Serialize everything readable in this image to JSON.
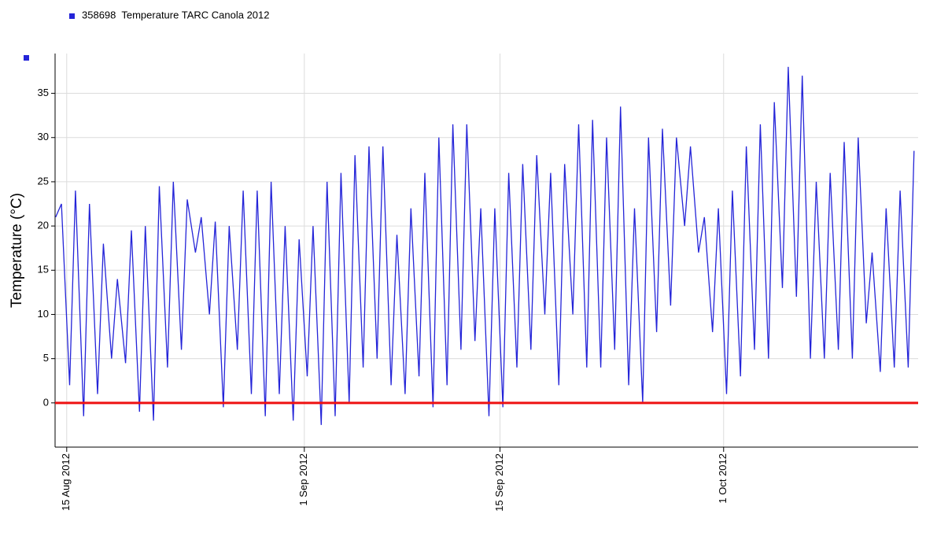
{
  "chart_data": {
    "type": "line",
    "ylabel": "Temperature (°C)",
    "series": [
      {
        "name": "358698  Temperature TARC Canola 2012",
        "color": "#2424d8",
        "x": [
          "2012-08-14T05:00",
          "2012-08-14T15:00",
          "2012-08-15T05:00",
          "2012-08-15T15:00",
          "2012-08-16T05:00",
          "2012-08-16T15:00",
          "2012-08-17T05:00",
          "2012-08-17T15:00",
          "2012-08-18T05:00",
          "2012-08-18T15:00",
          "2012-08-19T05:00",
          "2012-08-19T15:00",
          "2012-08-20T05:00",
          "2012-08-20T15:00",
          "2012-08-21T05:00",
          "2012-08-21T15:00",
          "2012-08-22T05:00",
          "2012-08-22T15:00",
          "2012-08-23T05:00",
          "2012-08-23T15:00",
          "2012-08-24T05:00",
          "2012-08-24T15:00",
          "2012-08-25T05:00",
          "2012-08-25T15:00",
          "2012-08-26T05:00",
          "2012-08-26T15:00",
          "2012-08-27T05:00",
          "2012-08-27T15:00",
          "2012-08-28T05:00",
          "2012-08-28T15:00",
          "2012-08-29T05:00",
          "2012-08-29T15:00",
          "2012-08-30T05:00",
          "2012-08-30T15:00",
          "2012-08-31T05:00",
          "2012-08-31T15:00",
          "2012-09-01T05:00",
          "2012-09-01T15:00",
          "2012-09-02T05:00",
          "2012-09-02T15:00",
          "2012-09-03T05:00",
          "2012-09-03T15:00",
          "2012-09-04T05:00",
          "2012-09-04T15:00",
          "2012-09-05T05:00",
          "2012-09-05T15:00",
          "2012-09-06T05:00",
          "2012-09-06T15:00",
          "2012-09-07T05:00",
          "2012-09-07T15:00",
          "2012-09-08T05:00",
          "2012-09-08T15:00",
          "2012-09-09T05:00",
          "2012-09-09T15:00",
          "2012-09-10T05:00",
          "2012-09-10T15:00",
          "2012-09-11T05:00",
          "2012-09-11T15:00",
          "2012-09-12T05:00",
          "2012-09-12T15:00",
          "2012-09-13T05:00",
          "2012-09-13T15:00",
          "2012-09-14T05:00",
          "2012-09-14T15:00",
          "2012-09-15T05:00",
          "2012-09-15T15:00",
          "2012-09-16T05:00",
          "2012-09-16T15:00",
          "2012-09-17T05:00",
          "2012-09-17T15:00",
          "2012-09-18T05:00",
          "2012-09-18T15:00",
          "2012-09-19T05:00",
          "2012-09-19T15:00",
          "2012-09-20T05:00",
          "2012-09-20T15:00",
          "2012-09-21T05:00",
          "2012-09-21T15:00",
          "2012-09-22T05:00",
          "2012-09-22T15:00",
          "2012-09-23T05:00",
          "2012-09-23T15:00",
          "2012-09-24T05:00",
          "2012-09-24T15:00",
          "2012-09-25T05:00",
          "2012-09-25T15:00",
          "2012-09-26T05:00",
          "2012-09-26T15:00",
          "2012-09-27T05:00",
          "2012-09-27T15:00",
          "2012-09-28T05:00",
          "2012-09-28T15:00",
          "2012-09-29T05:00",
          "2012-09-29T15:00",
          "2012-09-30T05:00",
          "2012-09-30T15:00",
          "2012-10-01T05:00",
          "2012-10-01T15:00",
          "2012-10-02T05:00",
          "2012-10-02T15:00",
          "2012-10-03T05:00",
          "2012-10-03T15:00",
          "2012-10-04T05:00",
          "2012-10-04T15:00",
          "2012-10-05T05:00",
          "2012-10-05T15:00",
          "2012-10-06T05:00",
          "2012-10-06T15:00",
          "2012-10-07T05:00",
          "2012-10-07T15:00",
          "2012-10-08T05:00",
          "2012-10-08T15:00",
          "2012-10-09T05:00",
          "2012-10-09T15:00",
          "2012-10-10T05:00",
          "2012-10-10T15:00",
          "2012-10-11T05:00",
          "2012-10-11T15:00",
          "2012-10-12T05:00",
          "2012-10-12T15:00",
          "2012-10-13T05:00",
          "2012-10-13T15:00",
          "2012-10-14T05:00",
          "2012-10-14T15:00"
        ],
        "values": [
          21,
          22.5,
          2,
          24,
          -1.5,
          22.5,
          1,
          18,
          5,
          14,
          4.5,
          19.5,
          -1,
          20,
          -2,
          24.5,
          4,
          25,
          6,
          23,
          17,
          21,
          10,
          20.5,
          -0.5,
          20,
          6,
          24,
          1,
          24,
          -1.5,
          25,
          1,
          20,
          -2,
          18.5,
          3,
          20,
          -2.5,
          25,
          -1.5,
          26,
          0,
          28,
          4,
          29,
          5,
          29,
          2,
          19,
          1,
          22,
          3,
          26,
          -0.5,
          30,
          2,
          31.5,
          6,
          31.5,
          7,
          22,
          -1.5,
          22,
          -0.5,
          26,
          4,
          27,
          6,
          28,
          10,
          26,
          2,
          27,
          10,
          31.5,
          4,
          32,
          4,
          30,
          6,
          33.5,
          2,
          22,
          0,
          30,
          8,
          31,
          11,
          30,
          20,
          29,
          17,
          21,
          8,
          22,
          1,
          24,
          3,
          29,
          6,
          31.5,
          5,
          34,
          13,
          38,
          12,
          37,
          5,
          25,
          5,
          26,
          6,
          29.5,
          5,
          30,
          9,
          17,
          3.5,
          22,
          4,
          24,
          4,
          28.5
        ]
      }
    ],
    "xlim": [
      "2012-08-14T04:00",
      "2012-10-14T22:00"
    ],
    "xticks": [
      {
        "value": "2012-08-15",
        "label": "15 Aug 2012"
      },
      {
        "value": "2012-09-01",
        "label": "1 Sep 2012"
      },
      {
        "value": "2012-09-15",
        "label": "15 Sep 2012"
      },
      {
        "value": "2012-10-01",
        "label": "1 Oct 2012"
      }
    ],
    "ylim": [
      -5,
      39.5
    ],
    "yticks": [
      0,
      5,
      10,
      15,
      20,
      25,
      30,
      35
    ],
    "grid": true,
    "threshold": {
      "value": 0,
      "color": "#ee1111"
    }
  }
}
